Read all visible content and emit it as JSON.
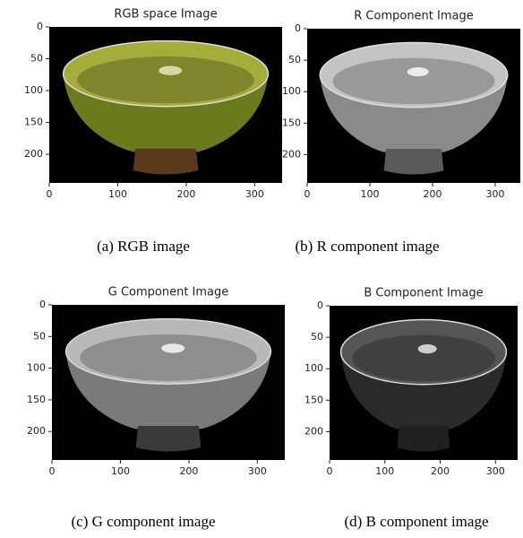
{
  "chart_data": [
    {
      "type": "image",
      "title": "RGB space Image",
      "xlim": [
        0,
        340
      ],
      "ylim": [
        245,
        0
      ],
      "xticks": [
        0,
        100,
        200,
        300
      ],
      "yticks": [
        0,
        50,
        100,
        150,
        200
      ]
    },
    {
      "type": "image",
      "title": "R Component Image",
      "xlim": [
        0,
        340
      ],
      "ylim": [
        245,
        0
      ],
      "xticks": [
        0,
        100,
        200,
        300
      ],
      "yticks": [
        0,
        50,
        100,
        150,
        200
      ]
    },
    {
      "type": "image",
      "title": "G Component Image",
      "xlim": [
        0,
        340
      ],
      "ylim": [
        245,
        0
      ],
      "xticks": [
        0,
        100,
        200,
        300
      ],
      "yticks": [
        0,
        50,
        100,
        150,
        200
      ]
    },
    {
      "type": "image",
      "title": "B Component Image",
      "xlim": [
        0,
        340
      ],
      "ylim": [
        245,
        0
      ],
      "xticks": [
        0,
        100,
        200,
        300
      ],
      "yticks": [
        0,
        50,
        100,
        150,
        200
      ]
    }
  ],
  "captions": [
    "(a) RGB image",
    "(b) R component image",
    "(c) G component image",
    "(d) B component image"
  ]
}
